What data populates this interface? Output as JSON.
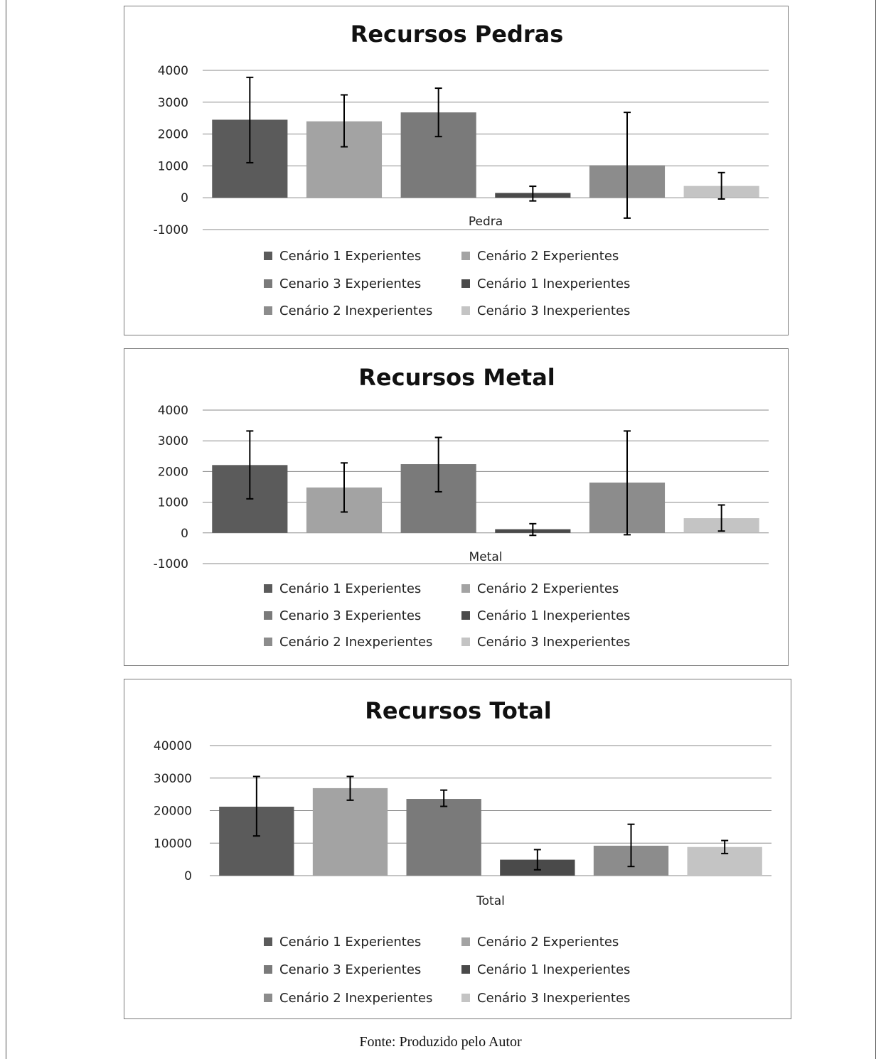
{
  "caption": "Fonte: Produzido pelo Autor",
  "legend_colors": [
    "#5b5b5b",
    "#a3a3a3",
    "#7a7a7a",
    "#4a4a4a",
    "#8c8c8c",
    "#c4c4c4"
  ],
  "chart_data": [
    {
      "type": "bar",
      "title": "Recursos Pedras",
      "category": "Pedra",
      "ylim": [
        -1000,
        4000
      ],
      "yticks": [
        -1000,
        0,
        1000,
        2000,
        3000,
        4000
      ],
      "grid": true,
      "legend_position": "bottom",
      "series": [
        {
          "name": "Cenário 1 Experientes",
          "value": 2450,
          "err_low": 1100,
          "err_high": 3780
        },
        {
          "name": "Cenário 2 Experientes",
          "value": 2400,
          "err_low": 1600,
          "err_high": 3230
        },
        {
          "name": "Cenario 3 Experientes",
          "value": 2680,
          "err_low": 1920,
          "err_high": 3440
        },
        {
          "name": "Cenário 1 Inexperientes",
          "value": 150,
          "err_low": -100,
          "err_high": 360
        },
        {
          "name": "Cenário 2 Inexperientes",
          "value": 1020,
          "err_low": -640,
          "err_high": 2680
        },
        {
          "name": "Cenário 3 Inexperientes",
          "value": 370,
          "err_low": -40,
          "err_high": 790
        }
      ]
    },
    {
      "type": "bar",
      "title": "Recursos Metal",
      "category": "Metal",
      "ylim": [
        -1000,
        4000
      ],
      "yticks": [
        -1000,
        0,
        1000,
        2000,
        3000,
        4000
      ],
      "grid": true,
      "legend_position": "bottom",
      "series": [
        {
          "name": "Cenário 1 Experientes",
          "value": 2210,
          "err_low": 1110,
          "err_high": 3320
        },
        {
          "name": "Cenário 2 Experientes",
          "value": 1480,
          "err_low": 680,
          "err_high": 2280
        },
        {
          "name": "Cenario 3 Experientes",
          "value": 2240,
          "err_low": 1340,
          "err_high": 3110
        },
        {
          "name": "Cenário 1 Inexperientes",
          "value": 120,
          "err_low": -80,
          "err_high": 300
        },
        {
          "name": "Cenário 2 Inexperientes",
          "value": 1640,
          "err_low": -60,
          "err_high": 3320
        },
        {
          "name": "Cenário 3 Inexperientes",
          "value": 480,
          "err_low": 60,
          "err_high": 910
        }
      ]
    },
    {
      "type": "bar",
      "title": "Recursos Total",
      "category": "Total",
      "ylim": [
        0,
        40000
      ],
      "yticks": [
        0,
        10000,
        20000,
        30000,
        40000
      ],
      "grid": true,
      "legend_position": "bottom",
      "series": [
        {
          "name": "Cenário 1 Experientes",
          "value": 21200,
          "err_low": 12200,
          "err_high": 30500
        },
        {
          "name": "Cenário 2 Experientes",
          "value": 26900,
          "err_low": 23200,
          "err_high": 30500
        },
        {
          "name": "Cenario 3 Experientes",
          "value": 23600,
          "err_low": 21300,
          "err_high": 26300
        },
        {
          "name": "Cenário 1 Inexperientes",
          "value": 4900,
          "err_low": 1800,
          "err_high": 8000
        },
        {
          "name": "Cenário 2 Inexperientes",
          "value": 9200,
          "err_low": 2800,
          "err_high": 15800
        },
        {
          "name": "Cenário 3 Inexperientes",
          "value": 8800,
          "err_low": 6800,
          "err_high": 10800
        }
      ]
    }
  ]
}
